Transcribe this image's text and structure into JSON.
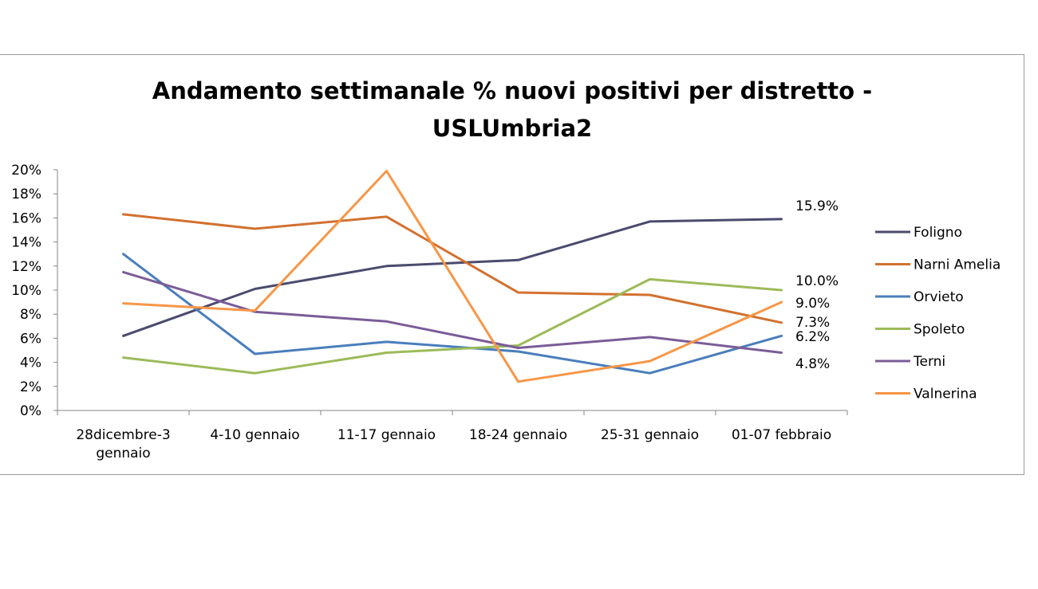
{
  "chart_data": {
    "type": "line",
    "title": [
      "Andamento settimanale % nuovi positivi per distretto -",
      "USLUmbria2"
    ],
    "categories": [
      [
        "28dicembre-3",
        "gennaio"
      ],
      [
        "4-10 gennaio"
      ],
      [
        "11-17 gennaio"
      ],
      [
        "18-24 gennaio"
      ],
      [
        "25-31 gennaio"
      ],
      [
        "01-07 febbraio"
      ]
    ],
    "ylim": [
      0,
      20
    ],
    "yticks": [
      0,
      2,
      4,
      6,
      8,
      10,
      12,
      14,
      16,
      18,
      20
    ],
    "ytick_labels": [
      "0%",
      "2%",
      "4%",
      "6%",
      "8%",
      "10%",
      "12%",
      "14%",
      "16%",
      "18%",
      "20%"
    ],
    "grid": false,
    "legend_position": "right",
    "series": [
      {
        "name": "Foligno",
        "color": "#4b4a6e",
        "values": [
          6.2,
          10.1,
          12.0,
          12.5,
          15.7,
          15.9
        ]
      },
      {
        "name": "Narni Amelia",
        "color": "#d2712f",
        "values": [
          16.3,
          15.1,
          16.1,
          9.8,
          9.6,
          7.3
        ]
      },
      {
        "name": "Orvieto",
        "color": "#4a7ebb",
        "values": [
          13.0,
          4.7,
          5.7,
          4.9,
          3.1,
          6.2
        ]
      },
      {
        "name": "Spoleto",
        "color": "#9bbb59",
        "values": [
          4.4,
          3.1,
          4.8,
          5.4,
          10.9,
          10.0
        ]
      },
      {
        "name": "Terni",
        "color": "#7b5c98",
        "values": [
          11.5,
          8.2,
          7.4,
          5.2,
          6.1,
          4.8
        ]
      },
      {
        "name": "Valnerina",
        "color": "#f79646",
        "values": [
          8.9,
          8.3,
          19.9,
          2.4,
          4.1,
          9.0
        ]
      }
    ],
    "end_labels": [
      "15.9%",
      "10.0%",
      "9.0%",
      "7.3%",
      "6.2%",
      "4.8%"
    ]
  }
}
